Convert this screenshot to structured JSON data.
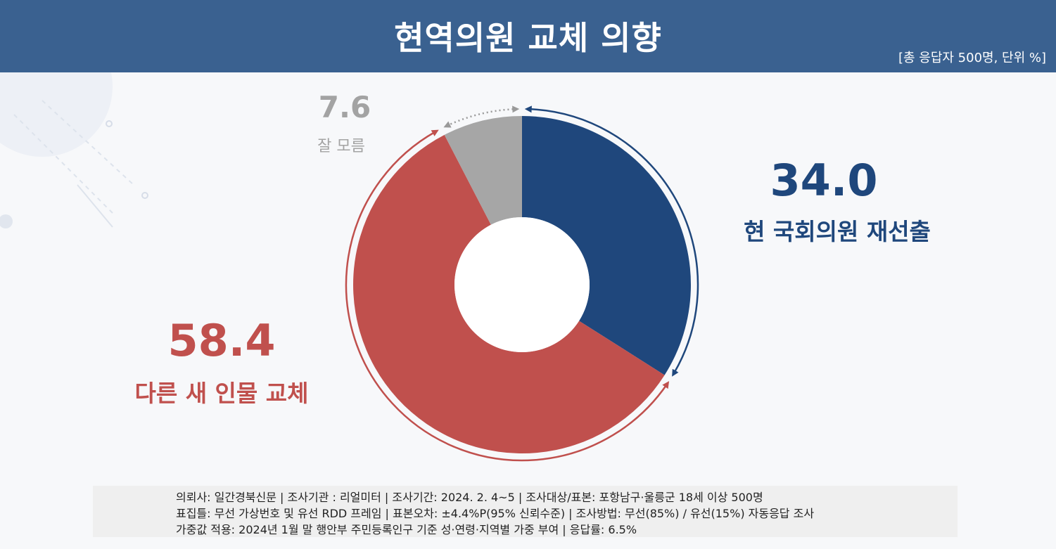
{
  "header": {
    "title": "현역의원 교체 의향",
    "unit_note": "[총 응답자 500명, 단위 %]"
  },
  "colors": {
    "header_bg": "#3a6190",
    "incumbent": "#1f477c",
    "replace": "#c0504d",
    "unknown": "#a6a6a6"
  },
  "chart_data": {
    "type": "donut",
    "title": "현역의원 교체 의향",
    "unit": "%",
    "categories": [
      "현 국회의원 재선출",
      "다른 새 인물 교체",
      "잘 모름"
    ],
    "values": [
      34.0,
      58.4,
      7.6
    ],
    "value_labels": [
      "34.0",
      "58.4",
      "7.6"
    ],
    "colors": [
      "#1f477c",
      "#c0504d",
      "#a6a6a6"
    ],
    "start": "12 o'clock, clockwise"
  },
  "footer": {
    "line1": "의뢰사: 일간경북신문 | 조사기관 : 리얼미터  |  조사기간: 2024. 2. 4~5 | 조사대상/표본: 포항남구·울릉군 18세 이상 500명",
    "line2": "표집틀: 무선 가상번호 및 유선 RDD 프레임 | 표본오차: ±4.4%P(95% 신뢰수준) | 조사방법: 무선(85%) / 유선(15%) 자동응답 조사",
    "line3": "가중값 적용: 2024년 1월 말 행안부 주민등록인구 기준 성·연령·지역별 가중 부여 | 응답률: 6.5%"
  }
}
